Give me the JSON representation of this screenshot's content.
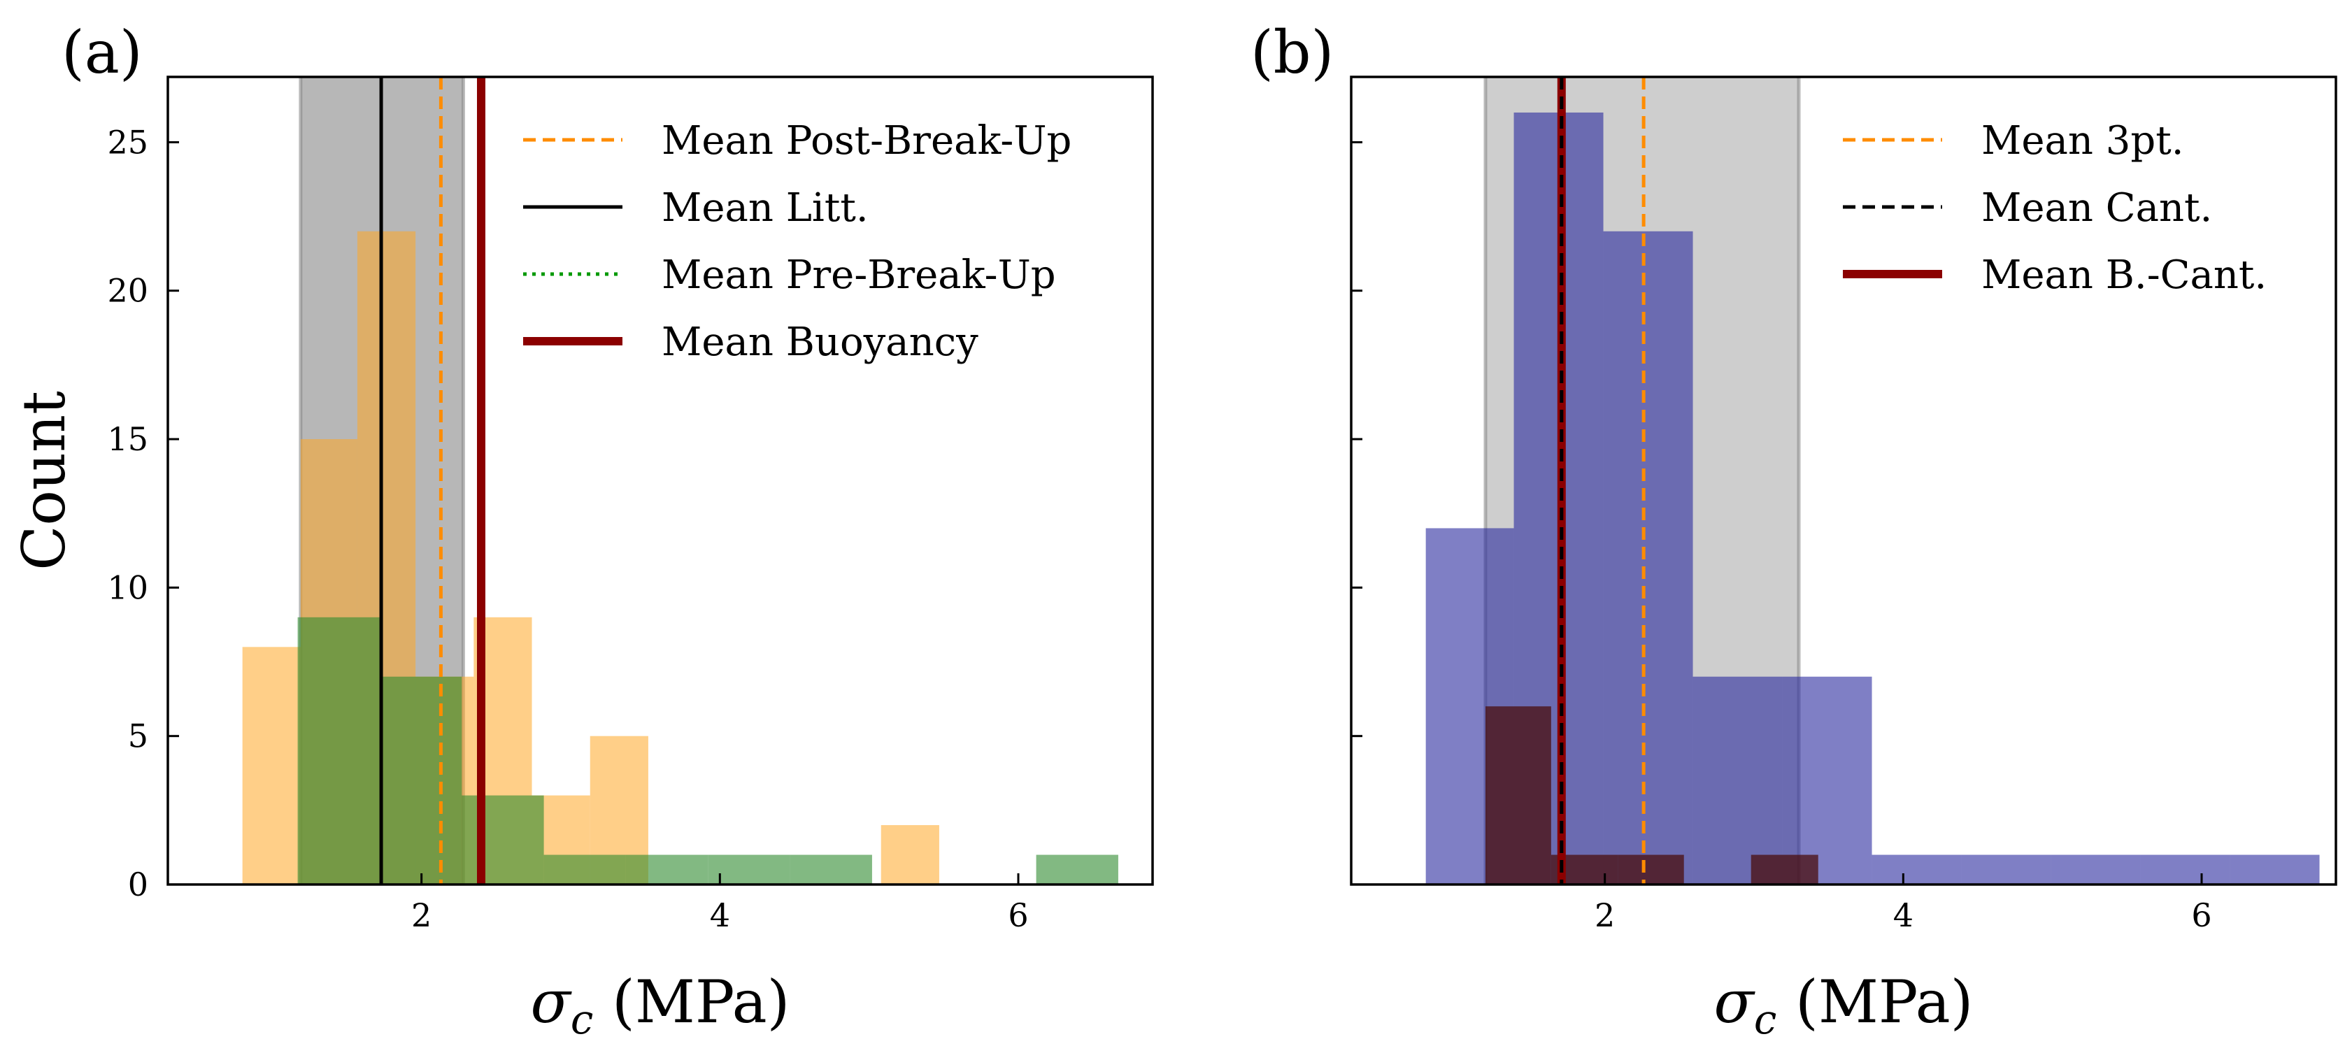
{
  "chart_data": [
    {
      "type": "histogram",
      "panel_label": "(a)",
      "xlabel": "σ_c (MPa)",
      "ylabel": "Count",
      "xlim": [
        0.3,
        6.9
      ],
      "ylim": [
        0,
        27.2
      ],
      "xticks": [
        2,
        4,
        6
      ],
      "yticks": [
        0,
        5,
        10,
        15,
        20,
        25
      ],
      "shaded_band": {
        "x0": 1.19,
        "x1": 2.28,
        "color": "#b3b3b3"
      },
      "series": [
        {
          "name": "Post-Break-Up",
          "color": "#ffa726",
          "opacity": 0.55,
          "bins": [
            {
              "x0": 0.8,
              "x1": 1.19,
              "count": 8
            },
            {
              "x0": 1.19,
              "x1": 1.57,
              "count": 15
            },
            {
              "x0": 1.57,
              "x1": 1.96,
              "count": 22
            },
            {
              "x0": 1.96,
              "x1": 2.35,
              "count": 7
            },
            {
              "x0": 2.35,
              "x1": 2.74,
              "count": 9
            },
            {
              "x0": 2.74,
              "x1": 3.13,
              "count": 3
            },
            {
              "x0": 3.13,
              "x1": 3.52,
              "count": 5
            },
            {
              "x0": 3.52,
              "x1": 3.91,
              "count": 0
            },
            {
              "x0": 3.91,
              "x1": 4.3,
              "count": 0
            },
            {
              "x0": 4.3,
              "x1": 4.69,
              "count": 0
            },
            {
              "x0": 4.69,
              "x1": 5.08,
              "count": 0
            },
            {
              "x0": 5.08,
              "x1": 5.47,
              "count": 2
            }
          ]
        },
        {
          "name": "Pre-Break-Up",
          "color": "#2e8b2e",
          "opacity": 0.6,
          "bins": [
            {
              "x0": 1.17,
              "x1": 1.72,
              "count": 9
            },
            {
              "x0": 1.72,
              "x1": 2.27,
              "count": 7
            },
            {
              "x0": 2.27,
              "x1": 2.82,
              "count": 3
            },
            {
              "x0": 2.82,
              "x1": 3.37,
              "count": 1
            },
            {
              "x0": 3.37,
              "x1": 3.92,
              "count": 1
            },
            {
              "x0": 3.92,
              "x1": 4.47,
              "count": 1
            },
            {
              "x0": 4.47,
              "x1": 5.02,
              "count": 1
            },
            {
              "x0": 5.02,
              "x1": 5.57,
              "count": 0
            },
            {
              "x0": 5.57,
              "x1": 6.12,
              "count": 0
            },
            {
              "x0": 6.12,
              "x1": 6.67,
              "count": 1
            }
          ]
        }
      ],
      "mean_lines": [
        {
          "label": "Mean Post-Break-Up",
          "x": 2.13,
          "color": "#ff8c00",
          "style": "dashed",
          "width": 5
        },
        {
          "label": "Mean Litt.",
          "x": 1.73,
          "color": "#000000",
          "style": "solid",
          "width": 5
        },
        {
          "label": "Mean Pre-Break-Up",
          "x": 2.4,
          "color": "#009900",
          "style": "dotted",
          "width": 5
        },
        {
          "label": "Mean Buoyancy",
          "x": 2.4,
          "color": "#8b0000",
          "style": "solid",
          "width": 12
        }
      ],
      "legend_position": "top-right"
    },
    {
      "type": "histogram",
      "panel_label": "(b)",
      "xlabel": "σ_c (MPa)",
      "ylabel": "",
      "xlim": [
        0.3,
        6.9
      ],
      "ylim": [
        0,
        27.2
      ],
      "xticks": [
        2,
        4,
        6
      ],
      "yticks": [
        0,
        5,
        10,
        15,
        20,
        25
      ],
      "shaded_band": {
        "x0": 1.2,
        "x1": 3.3,
        "color": "#b3b3b3"
      },
      "series": [
        {
          "name": "3pt.",
          "color": "#2a2a9e",
          "opacity": 0.6,
          "bins": [
            {
              "x0": 0.8,
              "x1": 1.39,
              "count": 12
            },
            {
              "x0": 1.39,
              "x1": 1.99,
              "count": 26
            },
            {
              "x0": 1.99,
              "x1": 2.59,
              "count": 22
            },
            {
              "x0": 2.59,
              "x1": 3.19,
              "count": 7
            },
            {
              "x0": 3.19,
              "x1": 3.79,
              "count": 7
            },
            {
              "x0": 3.79,
              "x1": 4.39,
              "count": 1
            },
            {
              "x0": 4.39,
              "x1": 4.99,
              "count": 1
            },
            {
              "x0": 4.99,
              "x1": 5.59,
              "count": 1
            },
            {
              "x0": 5.59,
              "x1": 6.19,
              "count": 1
            },
            {
              "x0": 6.19,
              "x1": 6.79,
              "count": 1
            }
          ]
        },
        {
          "name": "B.-Cant.",
          "color": "#4a0e0e",
          "opacity": 0.75,
          "bins": [
            {
              "x0": 1.2,
              "x1": 1.64,
              "count": 6
            },
            {
              "x0": 1.64,
              "x1": 2.09,
              "count": 1
            },
            {
              "x0": 2.09,
              "x1": 2.53,
              "count": 1
            },
            {
              "x0": 2.53,
              "x1": 2.98,
              "count": 0
            },
            {
              "x0": 2.98,
              "x1": 3.43,
              "count": 1
            }
          ]
        }
      ],
      "mean_lines": [
        {
          "label": "Mean 3pt.",
          "x": 2.26,
          "color": "#ff8c00",
          "style": "dashed",
          "width": 5
        },
        {
          "label": "Mean B.-Cant.",
          "x": 1.71,
          "color": "#8b0000",
          "style": "solid",
          "width": 12
        },
        {
          "label": "Mean Cant.",
          "x": 1.71,
          "color": "#000000",
          "style": "dashed",
          "width": 5
        }
      ],
      "legend": [
        {
          "label": "Mean 3pt.",
          "color": "#ff8c00",
          "style": "dashed",
          "width": 5
        },
        {
          "label": "Mean Cant.",
          "color": "#000000",
          "style": "dashed",
          "width": 5
        },
        {
          "label": "Mean B.-Cant.",
          "color": "#8b0000",
          "style": "solid",
          "width": 12
        }
      ],
      "legend_position": "top-right"
    }
  ]
}
